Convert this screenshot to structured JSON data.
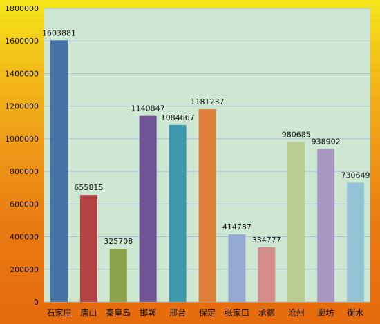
{
  "chart_data": {
    "type": "bar",
    "categories": [
      "石家庄",
      "唐山",
      "秦皇岛",
      "邯郸",
      "邢台",
      "保定",
      "张家口",
      "承德",
      "沧州",
      "廊坊",
      "衡水"
    ],
    "values": [
      1603881,
      655815,
      325708,
      1140847,
      1084667,
      1181237,
      414787,
      334777,
      980685,
      938902,
      730649
    ],
    "ylim": [
      0,
      1800000
    ],
    "yticks": [
      0,
      200000,
      400000,
      600000,
      800000,
      1000000,
      1200000,
      1400000,
      1600000,
      1800000
    ],
    "bar_colors": [
      "#4472a8",
      "#b14444",
      "#8aa24a",
      "#725594",
      "#3f9ab0",
      "#dd8038",
      "#93a9d2",
      "#d58d8b",
      "#b9cd92",
      "#a996c1",
      "#92c3d5"
    ],
    "grid": true,
    "legend": "none",
    "title": "",
    "xlabel": "",
    "ylabel": ""
  },
  "colors": {
    "plot_background": "#cde7d2",
    "gridline": "#a8c0cf",
    "background_top": "#f5e619",
    "background_bottom": "#e56a0c"
  }
}
